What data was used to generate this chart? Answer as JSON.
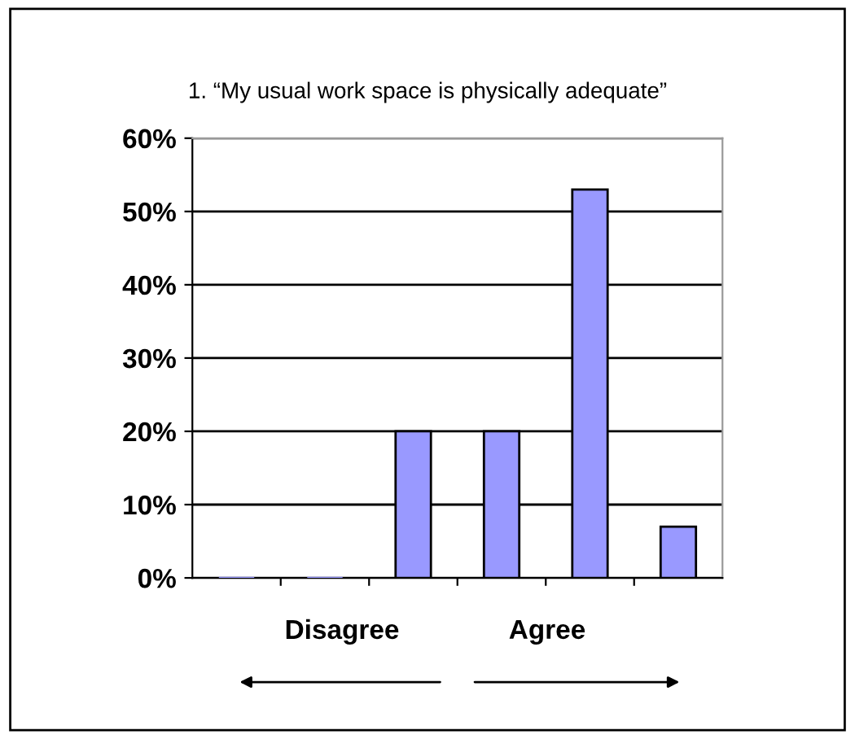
{
  "chart_data": {
    "type": "bar",
    "title": "1. “My usual work space is physically adequate”",
    "categories": [
      null,
      null,
      null,
      null,
      null,
      null
    ],
    "values": [
      0,
      0,
      20,
      20,
      53,
      7
    ],
    "color": "#9999ff",
    "ylim": [
      0,
      60
    ],
    "yticks": [
      {
        "value": 0,
        "label": "0%"
      },
      {
        "value": 10,
        "label": "10%"
      },
      {
        "value": 20,
        "label": "20%"
      },
      {
        "value": 30,
        "label": "30%"
      },
      {
        "value": 40,
        "label": "40%"
      },
      {
        "value": 50,
        "label": "50%"
      },
      {
        "value": 60,
        "label": "60%"
      }
    ],
    "grid": "y",
    "annotations": [
      "Disagree",
      "Agree"
    ]
  }
}
